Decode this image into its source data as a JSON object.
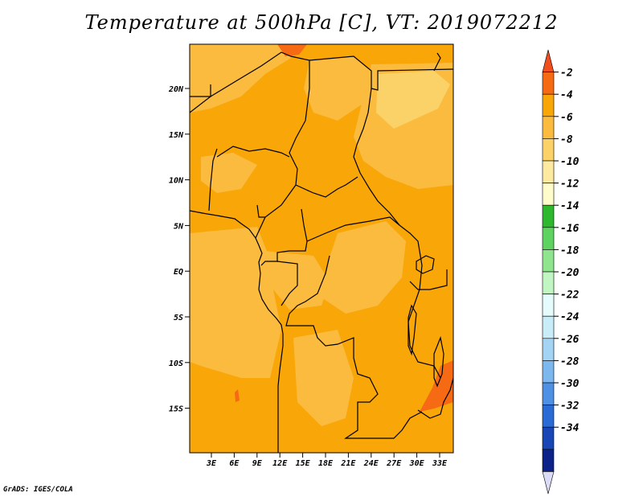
{
  "title": "Temperature at 500hPa [C], VT: 2019072212",
  "credit": "GrADS: IGES/COLA",
  "map": {
    "lat_labels": [
      "20N",
      "15N",
      "10N",
      "5N",
      "EQ",
      "5S",
      "10S",
      "15S"
    ],
    "lon_labels": [
      "3E",
      "6E",
      "9E",
      "12E",
      "15E",
      "18E",
      "21E",
      "24E",
      "27E",
      "30E",
      "33E"
    ],
    "fill_colors": {
      "cat_m4_m2": "#f8a608",
      "cat_m6_m4": "#fbbb3e",
      "cat_m8_m6": "#fbd267",
      "cat_m10_m8": "#fde9a0",
      "cat_m2_0": "#f66a14",
      "coast_border": "#000000"
    }
  },
  "colorbar": {
    "labels": [
      "-2",
      "-4",
      "-6",
      "-8",
      "-10",
      "-12",
      "-14",
      "-16",
      "-18",
      "-20",
      "-22",
      "-24",
      "-26",
      "-28",
      "-30",
      "-32",
      "-34"
    ],
    "colors": [
      "#f04e1e",
      "#f66a14",
      "#f8a608",
      "#fbbb3e",
      "#fbd267",
      "#fde9a0",
      "#fffccc",
      "#2db82d",
      "#5fd35f",
      "#8ee58e",
      "#c1f5c1",
      "#e6fbfb",
      "#c8ecf8",
      "#a4d4f4",
      "#7cb7ee",
      "#4e90e4",
      "#2a6ad4",
      "#1846b4",
      "#0c2288",
      "#dcdcf6"
    ]
  }
}
